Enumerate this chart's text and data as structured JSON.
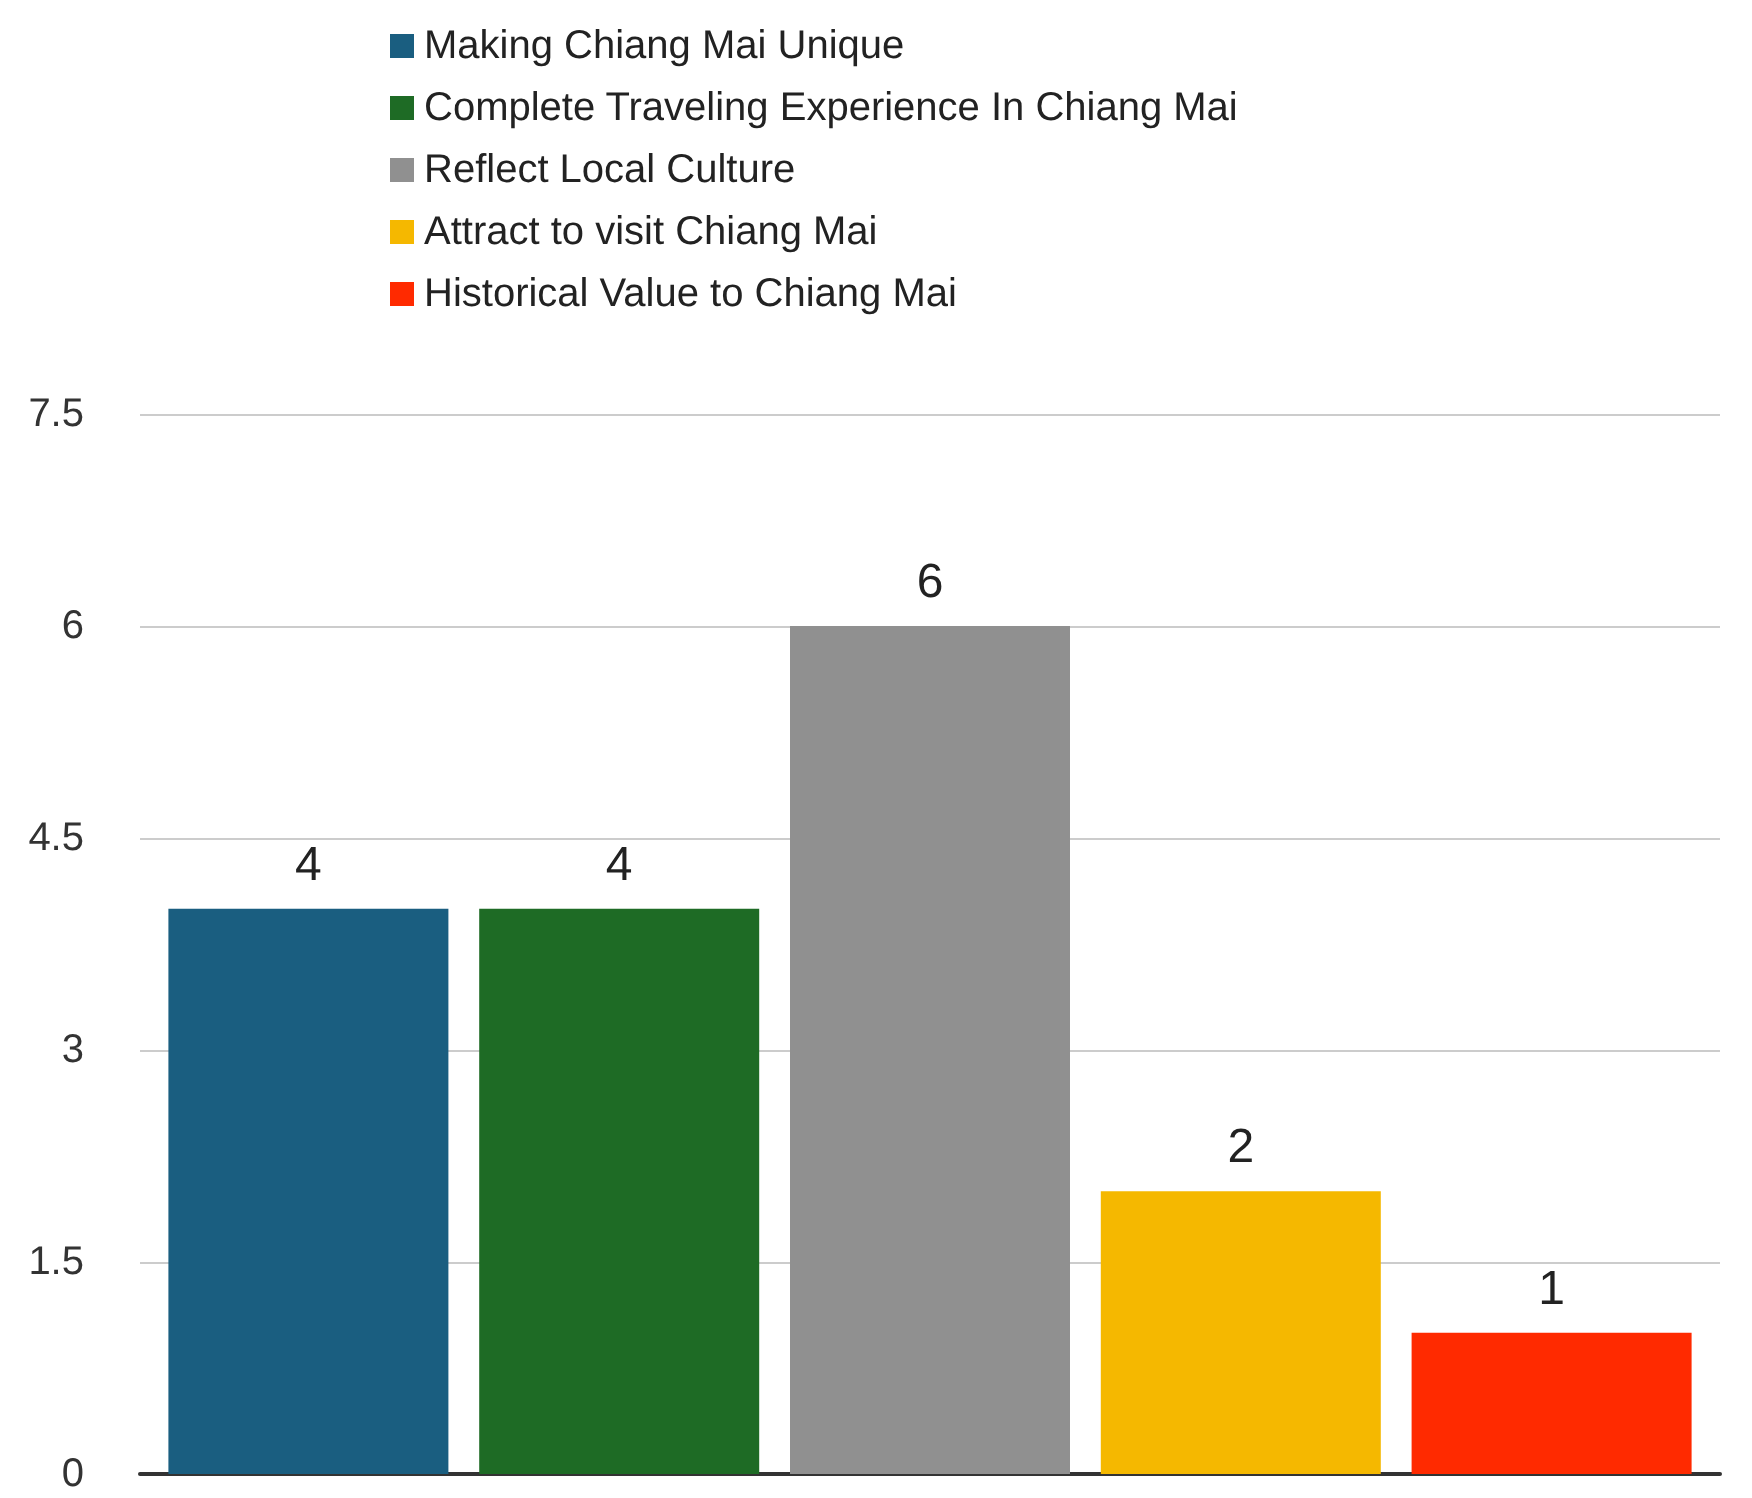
{
  "chart_data": {
    "type": "bar",
    "categories": [
      null
    ],
    "series": [
      {
        "name": "Making Chiang Mai Unique",
        "color": "#1a5e80",
        "values": [
          4
        ]
      },
      {
        "name": "Complete Traveling Experience In Chiang Mai",
        "color": "#1e6b25",
        "values": [
          4
        ]
      },
      {
        "name": "Reflect Local Culture",
        "color": "#909090",
        "values": [
          6
        ]
      },
      {
        "name": "Attract to visit Chiang Mai",
        "color": "#f5b800",
        "values": [
          2
        ]
      },
      {
        "name": "Historical Value to Chiang Mai",
        "color": "#ff2a00",
        "values": [
          1
        ]
      }
    ],
    "ylim": [
      0,
      7.5
    ],
    "yticks": [
      0,
      1.5,
      3,
      4.5,
      6,
      7.5
    ],
    "grid": "y",
    "legend": "top",
    "data_labels": true
  }
}
